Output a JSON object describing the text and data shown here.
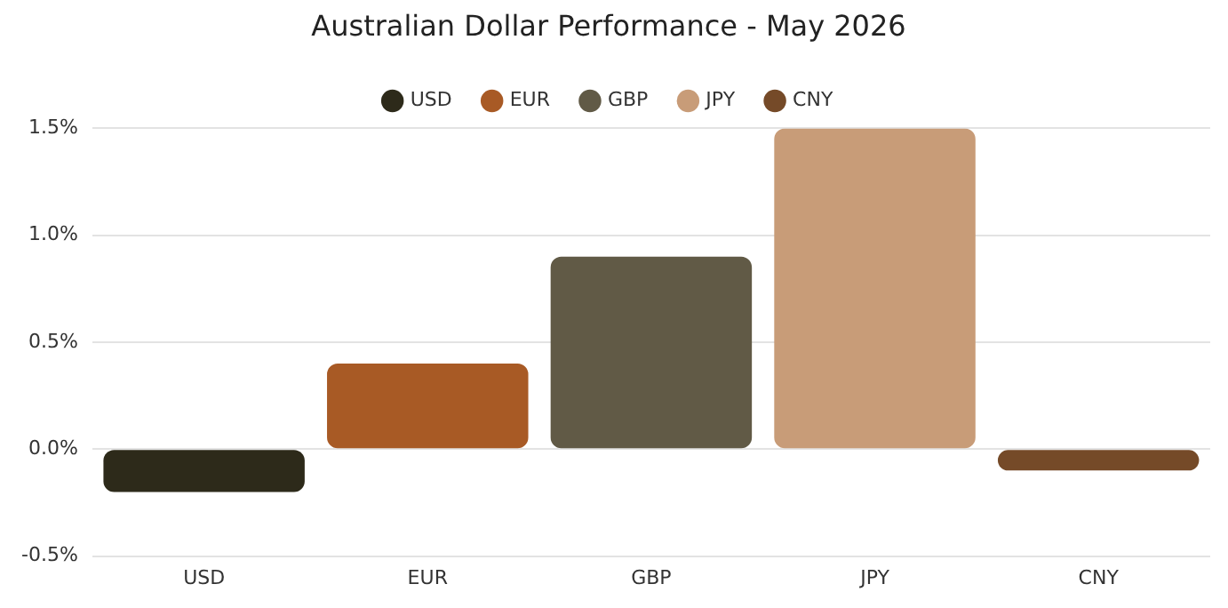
{
  "chart_data": {
    "type": "bar",
    "title": "Australian Dollar Performance - May 2026",
    "categories": [
      "USD",
      "EUR",
      "GBP",
      "JPY",
      "CNY"
    ],
    "series": [
      {
        "name": "USD",
        "color": "#2d2a1a",
        "values": [
          -0.2,
          null,
          null,
          null,
          null
        ]
      },
      {
        "name": "EUR",
        "color": "#a85a25",
        "values": [
          null,
          0.4,
          null,
          null,
          null
        ]
      },
      {
        "name": "GBP",
        "color": "#615a46",
        "values": [
          null,
          null,
          0.9,
          null,
          null
        ]
      },
      {
        "name": "JPY",
        "color": "#c89c78",
        "values": [
          null,
          null,
          null,
          1.5,
          null
        ]
      },
      {
        "name": "CNY",
        "color": "#754a28",
        "values": [
          null,
          null,
          null,
          null,
          -0.1
        ]
      }
    ],
    "ylim": [
      -0.5,
      1.5
    ],
    "yticks": [
      {
        "value": -0.5,
        "label": "-0.5%"
      },
      {
        "value": 0,
        "label": "0.0%"
      },
      {
        "value": 0.5,
        "label": "0.5%"
      },
      {
        "value": 1,
        "label": "1.0%"
      },
      {
        "value": 1.5,
        "label": "1.5%"
      }
    ],
    "grid": "y",
    "legend": "top"
  }
}
